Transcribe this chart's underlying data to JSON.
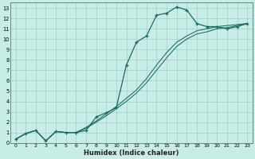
{
  "bg_color": "#c8ece6",
  "grid_color": "#9ecfca",
  "line_color": "#1a6b60",
  "xlabel": "Humidex (Indice chaleur)",
  "xlim": [
    -0.5,
    23.5
  ],
  "ylim": [
    0,
    13.5
  ],
  "x_ticks": [
    0,
    1,
    2,
    3,
    4,
    5,
    6,
    7,
    8,
    9,
    10,
    11,
    12,
    13,
    14,
    15,
    16,
    17,
    18,
    19,
    20,
    21,
    22,
    23
  ],
  "y_ticks": [
    0,
    1,
    2,
    3,
    4,
    5,
    6,
    7,
    8,
    9,
    10,
    11,
    12,
    13
  ],
  "curve1_x": [
    0,
    1,
    2,
    3,
    4,
    5,
    6,
    7,
    8,
    9,
    10,
    11,
    12,
    13,
    14,
    15,
    16,
    17,
    18,
    19,
    20,
    21,
    22,
    23
  ],
  "curve1_y": [
    0.35,
    0.9,
    1.2,
    0.2,
    1.1,
    1.0,
    1.0,
    1.2,
    2.5,
    2.9,
    3.4,
    7.5,
    9.7,
    10.3,
    12.3,
    12.5,
    13.1,
    12.8,
    11.5,
    11.2,
    11.2,
    11.0,
    11.2,
    11.5
  ],
  "curve2_x": [
    0,
    1,
    2,
    3,
    4,
    5,
    6,
    7,
    8,
    9,
    10,
    11,
    12,
    13,
    14,
    15,
    16,
    17,
    18,
    19,
    20,
    21,
    22,
    23
  ],
  "curve2_y": [
    0.35,
    0.9,
    1.2,
    0.2,
    1.1,
    1.0,
    1.0,
    1.4,
    2.0,
    2.6,
    3.3,
    4.0,
    4.8,
    5.8,
    7.0,
    8.2,
    9.3,
    10.0,
    10.5,
    10.7,
    11.0,
    11.1,
    11.3,
    11.5
  ],
  "curve3_x": [
    0,
    1,
    2,
    3,
    4,
    5,
    6,
    7,
    8,
    9,
    10,
    11,
    12,
    13,
    14,
    15,
    16,
    17,
    18,
    19,
    20,
    21,
    22,
    23
  ],
  "curve3_y": [
    0.35,
    0.9,
    1.2,
    0.2,
    1.1,
    1.0,
    1.0,
    1.5,
    2.1,
    2.8,
    3.5,
    4.3,
    5.1,
    6.2,
    7.5,
    8.7,
    9.7,
    10.3,
    10.8,
    11.0,
    11.2,
    11.3,
    11.4,
    11.5
  ]
}
